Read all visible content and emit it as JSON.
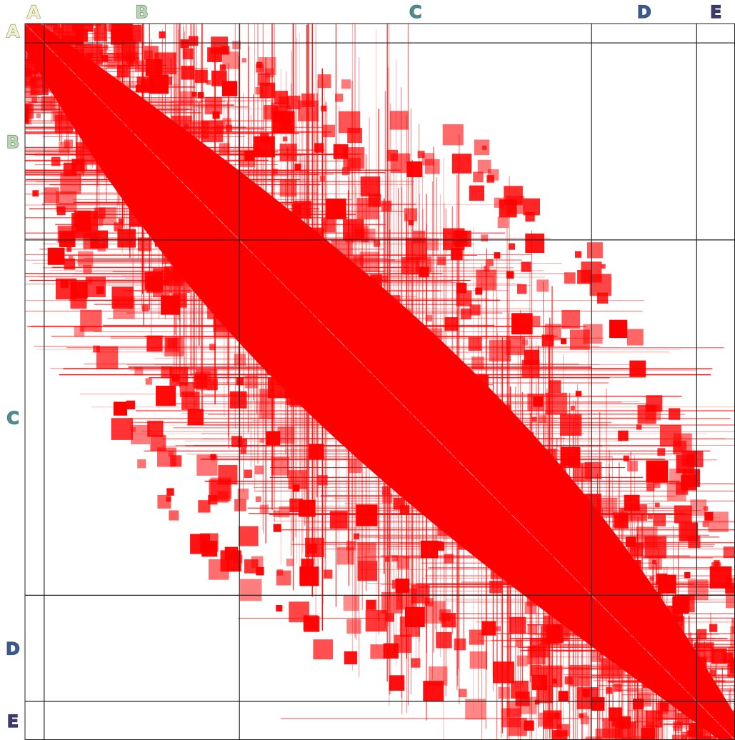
{
  "chart_data": {
    "type": "heatmap",
    "title": "",
    "xlabel": "",
    "ylabel": "",
    "cell_color": "#ff0000",
    "grid": true,
    "legend": false,
    "symmetric": true,
    "groups": [
      {
        "label": "A",
        "start": 0.0,
        "end": 0.027,
        "label_color": "#f2f2d0",
        "outline_color": "#8a8f57"
      },
      {
        "label": "B",
        "start": 0.027,
        "end": 0.302,
        "label_color": "#b8d6b0",
        "outline_color": "#5d7a5a"
      },
      {
        "label": "C",
        "start": 0.302,
        "end": 0.798,
        "label_color": "#4f8a8e",
        "outline_color": "#3f7276"
      },
      {
        "label": "D",
        "start": 0.798,
        "end": 0.946,
        "label_color": "#3c5b8c",
        "outline_color": "#2f4a73"
      },
      {
        "label": "E",
        "start": 0.946,
        "end": 1.0,
        "label_color": "#3d3a6e",
        "outline_color": "#2e2b57"
      }
    ]
  }
}
